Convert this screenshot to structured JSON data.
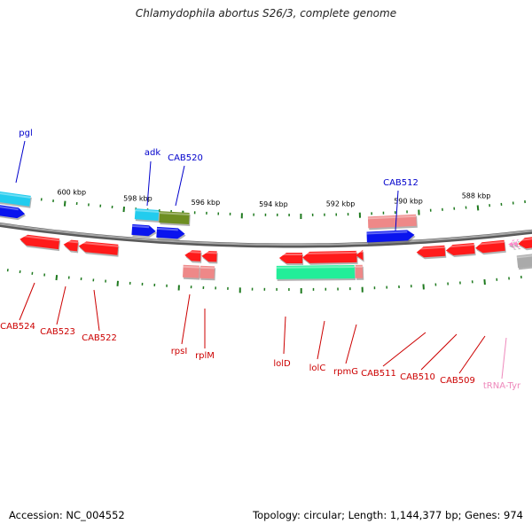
{
  "title": "Chlamydophila abortus S26/3, complete genome",
  "footer": {
    "accession": "Accession: NC_004552",
    "summary": "Topology: circular; Length: 1,144,377 bp; Genes: 974"
  },
  "colors": {
    "backbone": "#8c8c8c",
    "tick": "#1f7a1f",
    "forward_label": "#0000cc",
    "reverse_label": "#cc0000",
    "trna_label": "#ee88bb",
    "red_gene": "#ff1a1a",
    "pink_gene": "#ee8888",
    "blue_gene": "#0a14ee",
    "cyan_gene": "#22ccee",
    "olive_gene": "#6e8e22",
    "teal_gene": "#22ee99",
    "grey_gene": "#aaaaaa",
    "trna_gene": "#ff88cc"
  },
  "scale_labels": [
    "600 kbp",
    "598 kbp",
    "596 kbp",
    "594 kbp",
    "592 kbp",
    "590 kbp",
    "588 kbp"
  ],
  "forward_genes": [
    "pgl",
    "adk",
    "CAB520",
    "CAB512"
  ],
  "reverse_genes": [
    "CAB524",
    "CAB523",
    "CAB522",
    "rpsI",
    "rplM",
    "lolD",
    "lolC",
    "rpmG",
    "CAB511",
    "CAB510",
    "CAB509",
    "tRNA-Tyr"
  ]
}
